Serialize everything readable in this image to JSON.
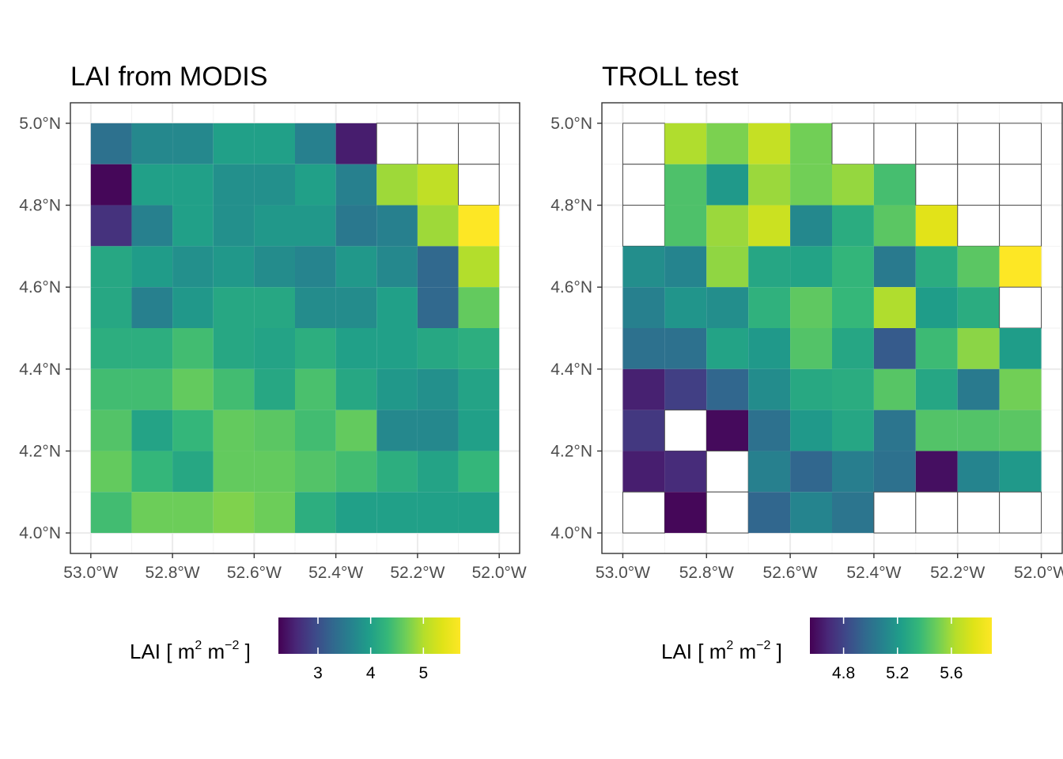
{
  "chart_data": [
    {
      "type": "heatmap",
      "title": "LAI from MODIS",
      "xlabel": "",
      "ylabel": "",
      "x_ticks": [
        "53.0°W",
        "52.8°W",
        "52.6°W",
        "52.4°W",
        "52.2°W",
        "52.0°W"
      ],
      "y_ticks": [
        "4.0°N",
        "4.2°N",
        "4.4°N",
        "4.6°N",
        "4.8°N",
        "5.0°N"
      ],
      "x_tick_values": [
        -53.0,
        -52.8,
        -52.6,
        -52.4,
        -52.2,
        -52.0
      ],
      "y_tick_values": [
        4.0,
        4.2,
        4.4,
        4.6,
        4.8,
        5.0
      ],
      "xlim": [
        -53.05,
        -51.95
      ],
      "ylim": [
        3.95,
        5.05
      ],
      "grid": true,
      "cell_size_deg": 0.1,
      "lon_centers": [
        -52.95,
        -52.85,
        -52.75,
        -52.65,
        -52.55,
        -52.45,
        -52.35,
        -52.25,
        -52.15,
        -52.05
      ],
      "lat_centers": [
        4.95,
        4.85,
        4.75,
        4.65,
        4.55,
        4.45,
        4.35,
        4.25,
        4.15,
        4.05
      ],
      "values": [
        [
          3.4,
          3.7,
          3.7,
          4.0,
          4.0,
          3.6,
          2.5,
          null,
          null,
          null
        ],
        [
          2.3,
          4.0,
          4.0,
          3.8,
          3.8,
          4.0,
          3.6,
          4.9,
          5.1,
          null
        ],
        [
          2.7,
          3.6,
          4.0,
          3.8,
          3.9,
          3.9,
          3.5,
          3.6,
          4.9,
          5.7
        ],
        [
          4.1,
          3.95,
          3.8,
          3.9,
          3.75,
          3.65,
          3.9,
          3.7,
          3.3,
          5.0
        ],
        [
          4.1,
          3.6,
          3.9,
          4.1,
          4.1,
          3.75,
          3.75,
          4.0,
          3.3,
          4.6
        ],
        [
          4.2,
          4.2,
          4.4,
          4.1,
          4.05,
          4.2,
          4.0,
          4.0,
          4.1,
          4.2
        ],
        [
          4.4,
          4.4,
          4.6,
          4.4,
          4.1,
          4.45,
          4.1,
          3.9,
          3.8,
          4.05
        ],
        [
          4.5,
          4.05,
          4.3,
          4.6,
          4.55,
          4.4,
          4.6,
          3.7,
          3.7,
          4.0
        ],
        [
          4.6,
          4.3,
          4.1,
          4.6,
          4.6,
          4.5,
          4.4,
          4.2,
          4.05,
          4.3
        ],
        [
          4.4,
          4.65,
          4.65,
          4.75,
          4.65,
          4.2,
          4.0,
          4.0,
          4.0,
          4.0
        ]
      ],
      "colorbar": {
        "title": "LAI [ m2 m−2 ]",
        "title_parts": {
          "base": "LAI [ m",
          "sup1": "2",
          "mid": " m",
          "sup2": "−2",
          "end": " ]"
        },
        "range": [
          2.25,
          5.7
        ],
        "ticks": [
          3,
          4,
          5
        ],
        "tick_labels": [
          "3",
          "4",
          "5"
        ]
      }
    },
    {
      "type": "heatmap",
      "title": "TROLL test",
      "xlabel": "",
      "ylabel": "",
      "x_ticks": [
        "53.0°W",
        "52.8°W",
        "52.6°W",
        "52.4°W",
        "52.2°W",
        "52.0°W"
      ],
      "y_ticks": [
        "4.0°N",
        "4.2°N",
        "4.4°N",
        "4.6°N",
        "4.8°N",
        "5.0°N"
      ],
      "x_tick_values": [
        -53.0,
        -52.8,
        -52.6,
        -52.4,
        -52.2,
        -52.0
      ],
      "y_tick_values": [
        4.0,
        4.2,
        4.4,
        4.6,
        4.8,
        5.0
      ],
      "xlim": [
        -53.05,
        -51.95
      ],
      "ylim": [
        3.95,
        5.05
      ],
      "grid": true,
      "cell_size_deg": 0.1,
      "lon_centers": [
        -52.95,
        -52.85,
        -52.75,
        -52.65,
        -52.55,
        -52.45,
        -52.35,
        -52.25,
        -52.15,
        -52.05
      ],
      "lat_centers": [
        4.95,
        4.85,
        4.75,
        4.65,
        4.55,
        4.45,
        4.35,
        4.25,
        4.15,
        4.05
      ],
      "values": [
        [
          null,
          5.62,
          5.52,
          5.68,
          5.5,
          null,
          null,
          null,
          null,
          null
        ],
        [
          null,
          5.42,
          5.2,
          5.58,
          5.5,
          5.57,
          5.4,
          null,
          null,
          null
        ],
        [
          null,
          5.42,
          5.58,
          5.7,
          5.12,
          5.3,
          5.45,
          5.78,
          null,
          null
        ],
        [
          5.15,
          5.1,
          5.56,
          5.27,
          5.25,
          5.35,
          5.05,
          5.3,
          5.45,
          5.9
        ],
        [
          5.08,
          5.18,
          5.15,
          5.33,
          5.46,
          5.36,
          5.62,
          5.22,
          5.3,
          null
        ],
        [
          5.0,
          5.0,
          5.25,
          5.2,
          5.43,
          5.27,
          4.9,
          5.38,
          5.55,
          5.22
        ],
        [
          4.66,
          4.78,
          4.95,
          5.14,
          5.28,
          5.3,
          5.44,
          5.27,
          5.05,
          5.5
        ],
        [
          4.75,
          null,
          4.58,
          5.0,
          5.2,
          5.27,
          5.02,
          5.43,
          5.43,
          5.45
        ],
        [
          4.65,
          4.7,
          null,
          5.08,
          4.95,
          5.07,
          5.0,
          4.6,
          5.1,
          5.2
        ],
        [
          null,
          4.57,
          null,
          4.95,
          5.1,
          5.02,
          null,
          null,
          null,
          null
        ]
      ],
      "colorbar": {
        "title": "LAI [ m2 m−2 ]",
        "title_parts": {
          "base": "LAI [ m",
          "sup1": "2",
          "mid": " m",
          "sup2": "−2",
          "end": " ]"
        },
        "range": [
          4.55,
          5.9
        ],
        "ticks": [
          4.8,
          5.2,
          5.6
        ],
        "tick_labels": [
          "4.8",
          "5.2",
          "5.6"
        ]
      }
    }
  ]
}
